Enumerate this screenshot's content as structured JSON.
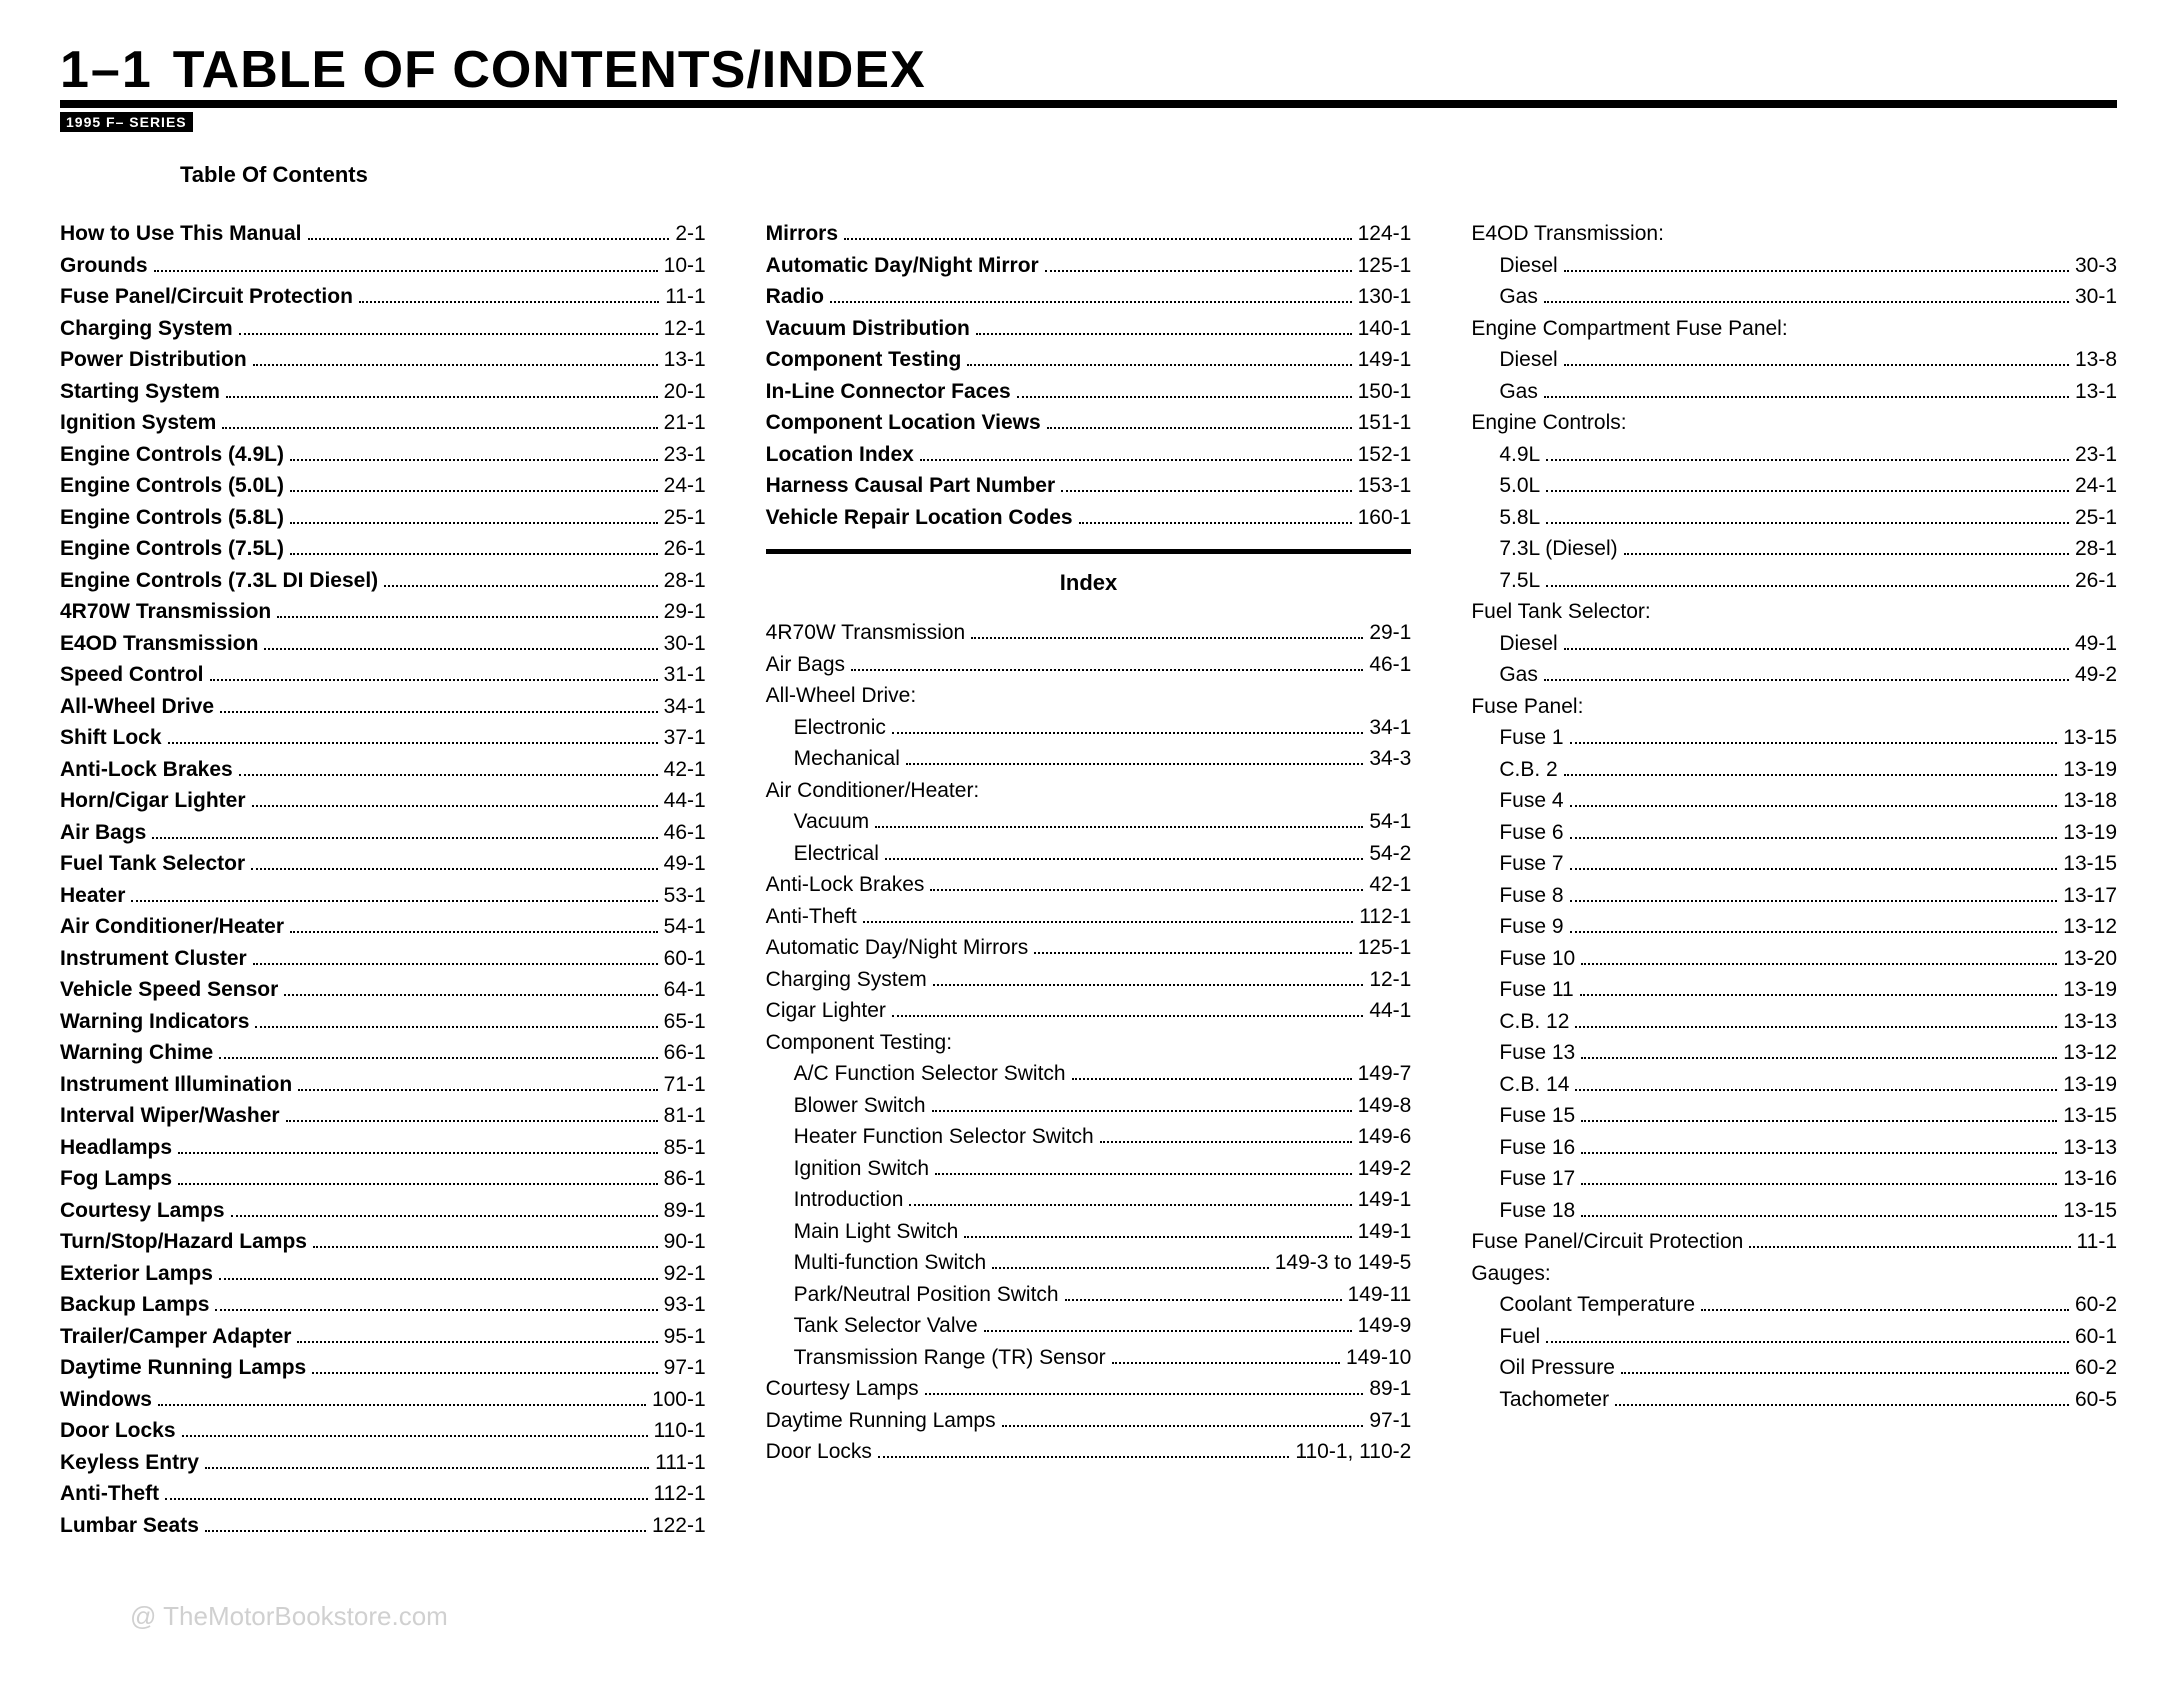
{
  "header": {
    "section_number": "1–1",
    "title": "TABLE OF CONTENTS/INDEX",
    "sub_bar": "1995 F– SERIES",
    "toc_label": "Table Of Contents",
    "index_label": "Index"
  },
  "watermark": "@ TheMotorBookstore.com",
  "col1": [
    {
      "label": "How to Use This Manual",
      "page": "2-1",
      "bold": true
    },
    {
      "label": "Grounds",
      "page": "10-1",
      "bold": true
    },
    {
      "label": "Fuse Panel/Circuit Protection",
      "page": "11-1",
      "bold": true
    },
    {
      "label": "Charging System",
      "page": "12-1",
      "bold": true
    },
    {
      "label": "Power Distribution",
      "page": "13-1",
      "bold": true
    },
    {
      "label": "Starting System",
      "page": "20-1",
      "bold": true
    },
    {
      "label": "Ignition System",
      "page": "21-1",
      "bold": true
    },
    {
      "label": "Engine Controls (4.9L)",
      "page": "23-1",
      "bold": true
    },
    {
      "label": "Engine Controls (5.0L)",
      "page": "24-1",
      "bold": true
    },
    {
      "label": "Engine Controls (5.8L)",
      "page": "25-1",
      "bold": true
    },
    {
      "label": "Engine Controls (7.5L)",
      "page": "26-1",
      "bold": true
    },
    {
      "label": "Engine Controls (7.3L DI Diesel)",
      "page": "28-1",
      "bold": true
    },
    {
      "label": "4R70W Transmission",
      "page": "29-1",
      "bold": true
    },
    {
      "label": "E4OD Transmission",
      "page": "30-1",
      "bold": true
    },
    {
      "label": "Speed Control",
      "page": "31-1",
      "bold": true
    },
    {
      "label": "All-Wheel Drive",
      "page": "34-1",
      "bold": true
    },
    {
      "label": "Shift Lock",
      "page": "37-1",
      "bold": true
    },
    {
      "label": "Anti-Lock Brakes",
      "page": "42-1",
      "bold": true
    },
    {
      "label": "Horn/Cigar Lighter",
      "page": "44-1",
      "bold": true
    },
    {
      "label": "Air Bags",
      "page": "46-1",
      "bold": true
    },
    {
      "label": "Fuel Tank Selector",
      "page": "49-1",
      "bold": true
    },
    {
      "label": "Heater",
      "page": "53-1",
      "bold": true
    },
    {
      "label": "Air Conditioner/Heater",
      "page": "54-1",
      "bold": true
    },
    {
      "label": "Instrument Cluster",
      "page": "60-1",
      "bold": true
    },
    {
      "label": "Vehicle Speed Sensor",
      "page": "64-1",
      "bold": true
    },
    {
      "label": "Warning Indicators",
      "page": "65-1",
      "bold": true
    },
    {
      "label": "Warning Chime",
      "page": "66-1",
      "bold": true
    },
    {
      "label": "Instrument Illumination",
      "page": "71-1",
      "bold": true
    },
    {
      "label": "Interval Wiper/Washer",
      "page": "81-1",
      "bold": true
    },
    {
      "label": "Headlamps",
      "page": "85-1",
      "bold": true
    },
    {
      "label": "Fog Lamps",
      "page": "86-1",
      "bold": true
    },
    {
      "label": "Courtesy Lamps",
      "page": "89-1",
      "bold": true
    },
    {
      "label": "Turn/Stop/Hazard Lamps",
      "page": "90-1",
      "bold": true
    },
    {
      "label": "Exterior Lamps",
      "page": "92-1",
      "bold": true
    },
    {
      "label": "Backup Lamps",
      "page": "93-1",
      "bold": true
    },
    {
      "label": "Trailer/Camper Adapter",
      "page": "95-1",
      "bold": true
    },
    {
      "label": "Daytime Running Lamps",
      "page": "97-1",
      "bold": true
    },
    {
      "label": "Windows",
      "page": "100-1",
      "bold": true
    },
    {
      "label": "Door Locks",
      "page": "110-1",
      "bold": true
    },
    {
      "label": "Keyless Entry",
      "page": "111-1",
      "bold": true
    },
    {
      "label": "Anti-Theft",
      "page": "112-1",
      "bold": true
    },
    {
      "label": "Lumbar Seats",
      "page": "122-1",
      "bold": true
    }
  ],
  "col2_top": [
    {
      "label": "Mirrors",
      "page": "124-1",
      "bold": true
    },
    {
      "label": "Automatic Day/Night Mirror",
      "page": "125-1",
      "bold": true
    },
    {
      "label": "Radio",
      "page": "130-1",
      "bold": true
    },
    {
      "label": "Vacuum Distribution",
      "page": "140-1",
      "bold": true
    },
    {
      "label": "Component Testing",
      "page": "149-1",
      "bold": true
    },
    {
      "label": "In-Line Connector Faces",
      "page": "150-1",
      "bold": true
    },
    {
      "label": "Component Location Views",
      "page": "151-1",
      "bold": true
    },
    {
      "label": "Location Index",
      "page": "152-1",
      "bold": true
    },
    {
      "label": "Harness Causal Part Number",
      "page": "153-1",
      "bold": true
    },
    {
      "label": "Vehicle Repair Location Codes",
      "page": "160-1",
      "bold": true
    }
  ],
  "col2_index": [
    {
      "label": "4R70W Transmission",
      "page": "29-1"
    },
    {
      "label": "Air Bags",
      "page": "46-1"
    },
    {
      "label": "All-Wheel Drive:",
      "group": true
    },
    {
      "label": "Electronic",
      "page": "34-1",
      "sub": true
    },
    {
      "label": "Mechanical",
      "page": "34-3",
      "sub": true
    },
    {
      "label": "Air Conditioner/Heater:",
      "group": true
    },
    {
      "label": "Vacuum",
      "page": "54-1",
      "sub": true
    },
    {
      "label": "Electrical",
      "page": "54-2",
      "sub": true
    },
    {
      "label": "Anti-Lock Brakes",
      "page": "42-1"
    },
    {
      "label": "Anti-Theft",
      "page": "112-1"
    },
    {
      "label": "Automatic Day/Night Mirrors",
      "page": "125-1"
    },
    {
      "label": "Charging System",
      "page": "12-1"
    },
    {
      "label": "Cigar Lighter",
      "page": "44-1"
    },
    {
      "label": "Component Testing:",
      "group": true
    },
    {
      "label": "A/C Function Selector Switch",
      "page": "149-7",
      "sub": true
    },
    {
      "label": "Blower Switch",
      "page": "149-8",
      "sub": true
    },
    {
      "label": "Heater Function Selector Switch",
      "page": "149-6",
      "sub": true
    },
    {
      "label": "Ignition Switch",
      "page": "149-2",
      "sub": true
    },
    {
      "label": "Introduction",
      "page": "149-1",
      "sub": true
    },
    {
      "label": "Main Light Switch",
      "page": "149-1",
      "sub": true
    },
    {
      "label": "Multi-function Switch",
      "page": "149-3 to 149-5",
      "sub": true
    },
    {
      "label": "Park/Neutral Position Switch",
      "page": "149-11",
      "sub": true
    },
    {
      "label": "Tank Selector Valve",
      "page": "149-9",
      "sub": true
    },
    {
      "label": "Transmission Range (TR) Sensor",
      "page": "149-10",
      "sub": true
    },
    {
      "label": "Courtesy Lamps",
      "page": "89-1"
    },
    {
      "label": "Daytime Running Lamps",
      "page": "97-1"
    },
    {
      "label": "Door Locks",
      "page": "110-1, 110-2"
    }
  ],
  "col3": [
    {
      "label": "E4OD Transmission:",
      "group": true
    },
    {
      "label": "Diesel",
      "page": "30-3",
      "sub": true
    },
    {
      "label": "Gas",
      "page": "30-1",
      "sub": true
    },
    {
      "label": "Engine Compartment Fuse Panel:",
      "group": true
    },
    {
      "label": "Diesel",
      "page": "13-8",
      "sub": true
    },
    {
      "label": "Gas",
      "page": "13-1",
      "sub": true
    },
    {
      "label": "Engine Controls:",
      "group": true
    },
    {
      "label": "4.9L",
      "page": "23-1",
      "sub": true
    },
    {
      "label": "5.0L",
      "page": "24-1",
      "sub": true
    },
    {
      "label": "5.8L",
      "page": "25-1",
      "sub": true
    },
    {
      "label": "7.3L (Diesel)",
      "page": "28-1",
      "sub": true
    },
    {
      "label": "7.5L",
      "page": "26-1",
      "sub": true
    },
    {
      "label": "Fuel Tank Selector:",
      "group": true
    },
    {
      "label": "Diesel",
      "page": "49-1",
      "sub": true
    },
    {
      "label": "Gas",
      "page": "49-2",
      "sub": true
    },
    {
      "label": "Fuse Panel:",
      "group": true
    },
    {
      "label": "Fuse 1",
      "page": "13-15",
      "sub": true
    },
    {
      "label": "C.B. 2",
      "page": "13-19",
      "sub": true
    },
    {
      "label": "Fuse 4",
      "page": "13-18",
      "sub": true
    },
    {
      "label": "Fuse 6",
      "page": "13-19",
      "sub": true
    },
    {
      "label": "Fuse 7",
      "page": "13-15",
      "sub": true
    },
    {
      "label": "Fuse 8",
      "page": "13-17",
      "sub": true
    },
    {
      "label": "Fuse 9",
      "page": "13-12",
      "sub": true
    },
    {
      "label": "Fuse 10",
      "page": "13-20",
      "sub": true
    },
    {
      "label": "Fuse 11",
      "page": "13-19",
      "sub": true
    },
    {
      "label": "C.B. 12",
      "page": "13-13",
      "sub": true
    },
    {
      "label": "Fuse 13",
      "page": "13-12",
      "sub": true
    },
    {
      "label": "C.B. 14",
      "page": "13-19",
      "sub": true
    },
    {
      "label": "Fuse 15",
      "page": "13-15",
      "sub": true
    },
    {
      "label": "Fuse 16",
      "page": "13-13",
      "sub": true
    },
    {
      "label": "Fuse 17",
      "page": "13-16",
      "sub": true
    },
    {
      "label": "Fuse 18",
      "page": "13-15",
      "sub": true
    },
    {
      "label": "Fuse Panel/Circuit Protection",
      "page": "11-1"
    },
    {
      "label": "Gauges:",
      "group": true
    },
    {
      "label": "Coolant Temperature",
      "page": "60-2",
      "sub": true
    },
    {
      "label": "Fuel",
      "page": "60-1",
      "sub": true
    },
    {
      "label": "Oil Pressure",
      "page": "60-2",
      "sub": true
    },
    {
      "label": "Tachometer",
      "page": "60-5",
      "sub": true
    }
  ]
}
